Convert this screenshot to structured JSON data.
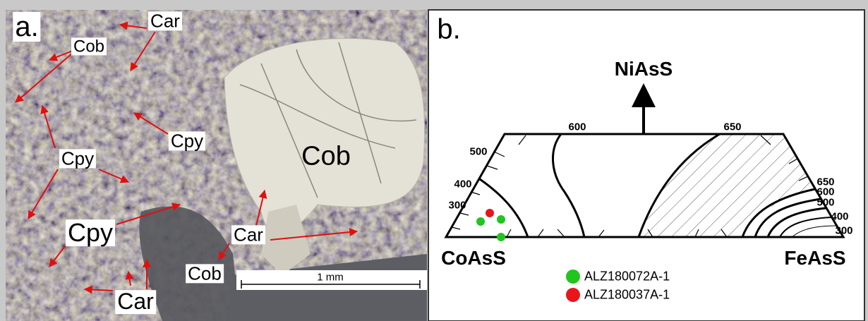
{
  "panel_a": {
    "label": "a.",
    "annotations": [
      "Car",
      "Cob",
      "Cpy",
      "Cpy",
      "Cob",
      "Cpy",
      "Car",
      "Cob",
      "Car"
    ],
    "scale_bar": "1 mm"
  },
  "panel_b": {
    "label": "b.",
    "apex": "NiAsS",
    "left_corner": "CoAsS",
    "right_corner": "FeAsS",
    "isotherm_labels": [
      "600",
      "650",
      "500",
      "400",
      "300",
      "650",
      "600",
      "500",
      "400",
      "300"
    ],
    "legend": [
      {
        "name": "ALZ180072A-1",
        "color": "#22c41e"
      },
      {
        "name": "ALZ180037A-1",
        "color": "#e8161b"
      }
    ]
  }
}
